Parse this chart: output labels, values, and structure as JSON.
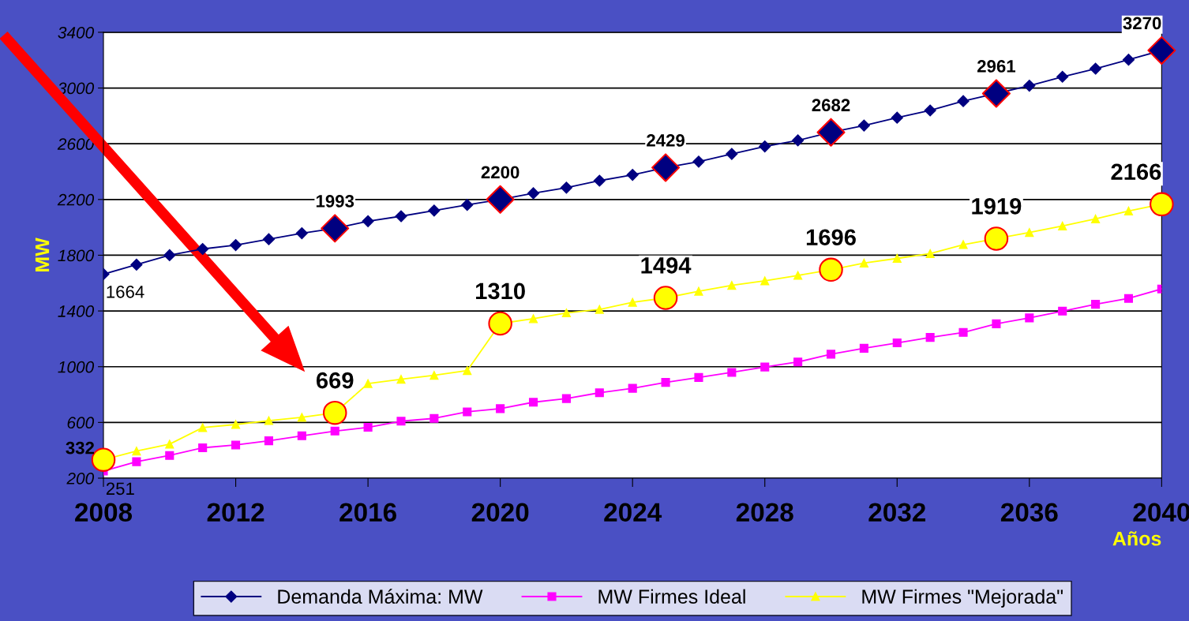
{
  "chart_data": {
    "type": "line",
    "xlabel": "Años",
    "ylabel": "MW",
    "x": [
      2008,
      2009,
      2010,
      2011,
      2012,
      2013,
      2014,
      2015,
      2016,
      2017,
      2018,
      2019,
      2020,
      2021,
      2022,
      2023,
      2024,
      2025,
      2026,
      2027,
      2028,
      2029,
      2030,
      2031,
      2032,
      2033,
      2034,
      2035,
      2036,
      2037,
      2038,
      2039,
      2040
    ],
    "series": [
      {
        "name": "Demanda Máxima: MW",
        "color": "#000080",
        "marker": "diamond",
        "values": [
          1664,
          1732,
          1800,
          1845,
          1873,
          1915,
          1958,
          1993,
          2044,
          2080,
          2121,
          2161,
          2200,
          2245,
          2285,
          2335,
          2377,
          2429,
          2472,
          2527,
          2581,
          2624,
          2682,
          2731,
          2787,
          2839,
          2906,
          2961,
          3017,
          3081,
          3139,
          3203,
          3270
        ]
      },
      {
        "name": "MW Firmes Ideal",
        "color": "#ff00ff",
        "marker": "square",
        "values": [
          251,
          318,
          363,
          418,
          438,
          468,
          504,
          538,
          565,
          609,
          629,
          676,
          699,
          745,
          771,
          813,
          845,
          887,
          923,
          959,
          998,
          1034,
          1090,
          1132,
          1171,
          1210,
          1246,
          1308,
          1350,
          1399,
          1448,
          1490,
          1558
        ]
      },
      {
        "name": "MW Firmes \"Mejorada\"",
        "color": "#ffff00",
        "marker": "triangle",
        "values": [
          332,
          394,
          444,
          563,
          585,
          613,
          637,
          669,
          879,
          910,
          938,
          972,
          1310,
          1344,
          1386,
          1411,
          1462,
          1494,
          1541,
          1584,
          1616,
          1655,
          1696,
          1744,
          1777,
          1812,
          1876,
          1919,
          1963,
          2010,
          2061,
          2117,
          2166
        ]
      },
      {
        "type": "scatter",
        "color": "#000080",
        "marker": "diamond",
        "x": [
          2015,
          2020,
          2025,
          2030,
          2035,
          2040
        ],
        "values": [
          1993,
          2200,
          2429,
          2682,
          2961,
          3270
        ],
        "value_labels": [
          "1993",
          "2200",
          "2429",
          "2682",
          "2961",
          "3270"
        ]
      },
      {
        "type": "scatter",
        "color": "#ffff00",
        "marker": "circle",
        "x": [
          2008,
          2015,
          2020,
          2025,
          2030,
          2035,
          2040
        ],
        "values": [
          332,
          669,
          1310,
          1494,
          1696,
          1919,
          2166
        ],
        "value_labels": [
          "332",
          "669",
          "1310",
          "1494",
          "1696",
          "1919",
          "2166"
        ]
      }
    ],
    "annotations": [
      {
        "text": "1664",
        "x": 2008,
        "y": 1664
      },
      {
        "text": "251",
        "x": 2008,
        "y": 251
      }
    ],
    "xlim": [
      2008,
      2040
    ],
    "xticks": [
      2008,
      2012,
      2016,
      2020,
      2024,
      2028,
      2032,
      2036,
      2040
    ],
    "ylim": [
      200,
      3400
    ],
    "yticks": [
      200,
      600,
      1000,
      1400,
      1800,
      2200,
      2600,
      3000,
      3400
    ],
    "grid": "y",
    "legend": "bottom",
    "line_style": "solid"
  }
}
